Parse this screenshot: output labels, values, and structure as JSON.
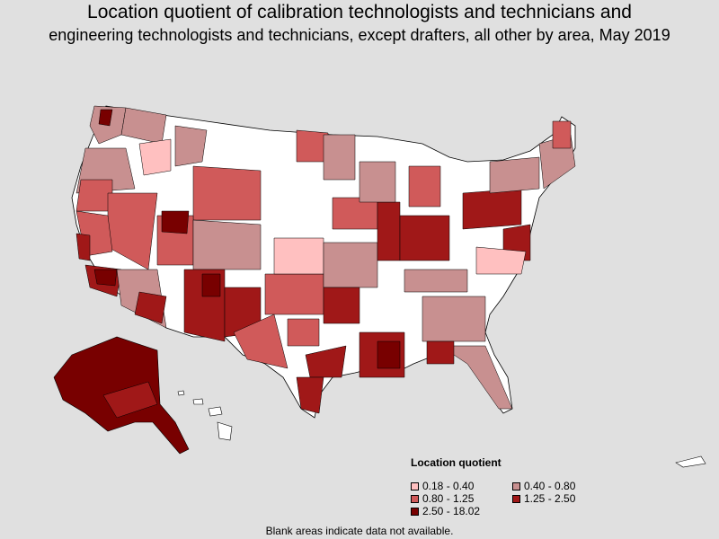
{
  "title_line1": "Location quotient of calibration technologists and technicians and",
  "title_line2": "engineering technologists and technicians, except drafters, all other by area, May 2019",
  "legend": {
    "title": "Location quotient",
    "items": [
      {
        "label": "0.18 - 0.40",
        "color": "#ffc0c0"
      },
      {
        "label": "0.40 - 0.80",
        "color": "#c89090"
      },
      {
        "label": "0.80 - 1.25",
        "color": "#d05a5a"
      },
      {
        "label": "1.25 - 2.50",
        "color": "#a01818"
      },
      {
        "label": "2.50 - 18.02",
        "color": "#780000"
      }
    ]
  },
  "footnote": "Blank areas indicate data not available.",
  "colors": {
    "background": "#e0e0e0",
    "no_data": "#ffffff",
    "border": "#000000"
  }
}
